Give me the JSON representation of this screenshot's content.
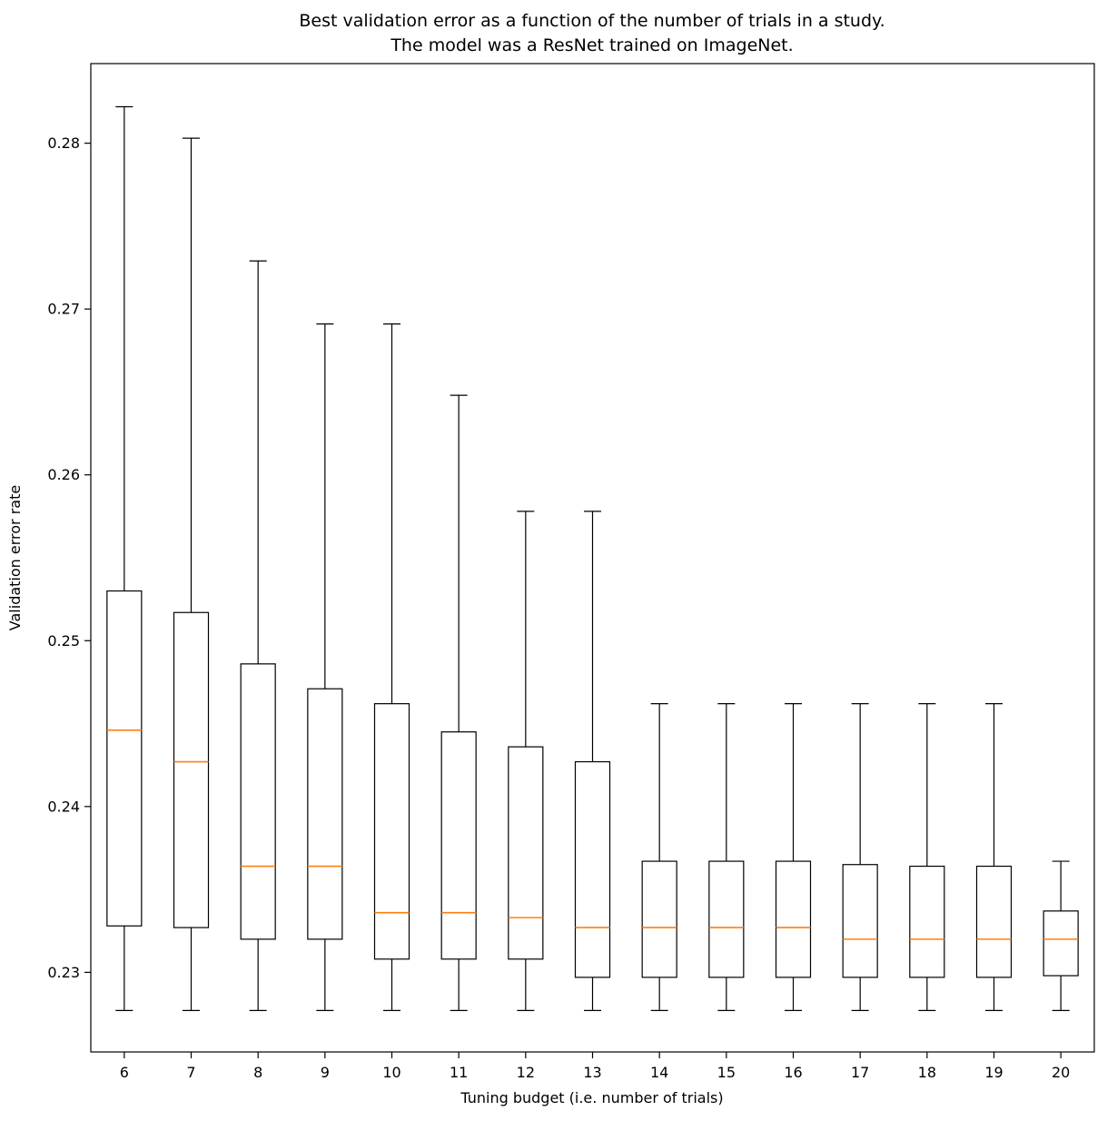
{
  "figure": {
    "title_line1": "Best validation error as a function of the number of trials in a study.",
    "title_line2": "The model was a ResNet trained on ImageNet."
  },
  "chart_data": {
    "type": "boxplot",
    "title": "Best validation error as a function of the number of trials in a study.\nThe model was a ResNet trained on ImageNet.",
    "xlabel": "Tuning budget (i.e. number of trials)",
    "ylabel": "Validation error rate",
    "categories": [
      "6",
      "7",
      "8",
      "9",
      "10",
      "11",
      "12",
      "13",
      "14",
      "15",
      "16",
      "17",
      "18",
      "19",
      "20"
    ],
    "yticks": [
      "0.23",
      "0.24",
      "0.25",
      "0.26",
      "0.27",
      "0.28"
    ],
    "ytick_values": [
      0.23,
      0.24,
      0.25,
      0.26,
      0.27,
      0.28
    ],
    "ylim": [
      0.2252,
      0.2848
    ],
    "grid": false,
    "legend": "none",
    "box_edge_color": "#000000",
    "box_fill_color": "#ffffff",
    "median_color": "#ff7f0e",
    "boxes": [
      {
        "x": "6",
        "whislo": 0.2277,
        "q1": 0.2328,
        "med": 0.2446,
        "q3": 0.253,
        "whishi": 0.2822
      },
      {
        "x": "7",
        "whislo": 0.2277,
        "q1": 0.2327,
        "med": 0.2427,
        "q3": 0.2517,
        "whishi": 0.2803
      },
      {
        "x": "8",
        "whislo": 0.2277,
        "q1": 0.232,
        "med": 0.2364,
        "q3": 0.2486,
        "whishi": 0.2729
      },
      {
        "x": "9",
        "whislo": 0.2277,
        "q1": 0.232,
        "med": 0.2364,
        "q3": 0.2471,
        "whishi": 0.2691
      },
      {
        "x": "10",
        "whislo": 0.2277,
        "q1": 0.2308,
        "med": 0.2336,
        "q3": 0.2462,
        "whishi": 0.2691
      },
      {
        "x": "11",
        "whislo": 0.2277,
        "q1": 0.2308,
        "med": 0.2336,
        "q3": 0.2445,
        "whishi": 0.2648
      },
      {
        "x": "12",
        "whislo": 0.2277,
        "q1": 0.2308,
        "med": 0.2333,
        "q3": 0.2436,
        "whishi": 0.2578
      },
      {
        "x": "13",
        "whislo": 0.2277,
        "q1": 0.2297,
        "med": 0.2327,
        "q3": 0.2427,
        "whishi": 0.2578
      },
      {
        "x": "14",
        "whislo": 0.2277,
        "q1": 0.2297,
        "med": 0.2327,
        "q3": 0.2367,
        "whishi": 0.2462
      },
      {
        "x": "15",
        "whislo": 0.2277,
        "q1": 0.2297,
        "med": 0.2327,
        "q3": 0.2367,
        "whishi": 0.2462
      },
      {
        "x": "16",
        "whislo": 0.2277,
        "q1": 0.2297,
        "med": 0.2327,
        "q3": 0.2367,
        "whishi": 0.2462
      },
      {
        "x": "17",
        "whislo": 0.2277,
        "q1": 0.2297,
        "med": 0.232,
        "q3": 0.2365,
        "whishi": 0.2462
      },
      {
        "x": "18",
        "whislo": 0.2277,
        "q1": 0.2297,
        "med": 0.232,
        "q3": 0.2364,
        "whishi": 0.2462
      },
      {
        "x": "19",
        "whislo": 0.2277,
        "q1": 0.2297,
        "med": 0.232,
        "q3": 0.2364,
        "whishi": 0.2462
      },
      {
        "x": "20",
        "whislo": 0.2277,
        "q1": 0.2298,
        "med": 0.232,
        "q3": 0.2337,
        "whishi": 0.2367
      }
    ]
  }
}
